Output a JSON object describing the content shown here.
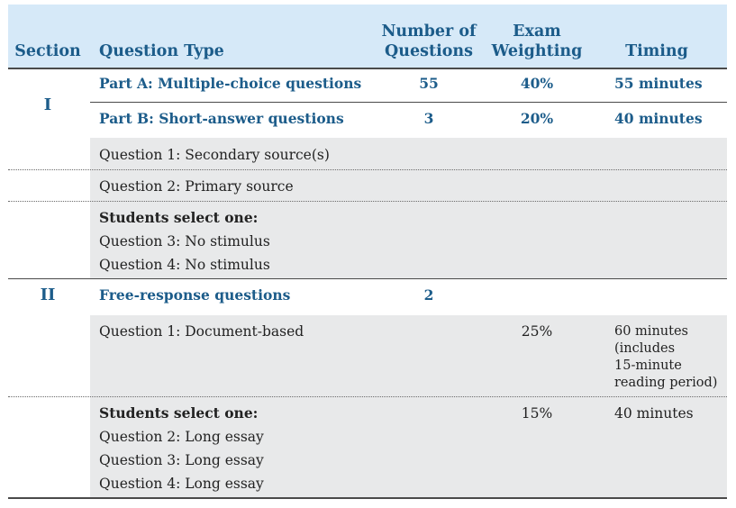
{
  "headers": {
    "section": "Section",
    "question_type": "Question Type",
    "num_questions_1": "Number of",
    "num_questions_2": "Questions",
    "weighting_1": "Exam",
    "weighting_2": "Weighting",
    "timing": "Timing"
  },
  "section1": {
    "label": "I",
    "partA": {
      "type": "Part A: Multiple-choice questions",
      "count": "55",
      "weight": "40%",
      "timing": "55 minutes"
    },
    "partB": {
      "type": "Part B: Short-answer questions",
      "count": "3",
      "weight": "20%",
      "timing": "40 minutes"
    },
    "q1": "Question 1: Secondary source(s)",
    "q2": "Question 2: Primary source",
    "select": "Students select one:",
    "q3": "Question 3: No stimulus",
    "q4": "Question 4: No stimulus"
  },
  "section2": {
    "label": "II",
    "free": {
      "type": "Free-response questions",
      "count": "2"
    },
    "dbq": {
      "label": "Question 1: Document-based",
      "weight": "25%",
      "timing": [
        "60 minutes",
        "(includes",
        "15-minute",
        "reading period)"
      ]
    },
    "select": "Students select one:",
    "essay_weight": "15%",
    "essay_timing": "40 minutes",
    "q2": "Question 2: Long essay",
    "q3": "Question 3: Long essay",
    "q4": "Question 4: Long essay"
  }
}
